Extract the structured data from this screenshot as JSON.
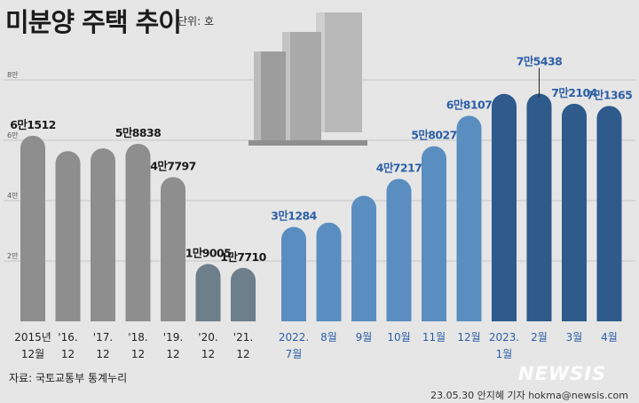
{
  "title": "미분양 주택 추이",
  "unit_label": "단위: 호",
  "source": "자료: 국토교통부 통계누리",
  "credit": "23.05.30 안지혜 기자 hokma@newsis.com",
  "logo": "NEWSIS",
  "colors": {
    "gray": "#8e8e8e",
    "dark_gray": "#6e7f8c",
    "light_blue": "#5a8ec0",
    "dark_blue": "#2e5a8c",
    "label_black": "#1a1a1a",
    "label_blue": "#2d5fa6",
    "background": "#e6e6e6"
  },
  "chart_data": {
    "type": "bar",
    "ylim": [
      0,
      80000
    ],
    "yticks": [
      20000,
      40000,
      60000,
      80000
    ],
    "ytick_labels": [
      "2만",
      "4만",
      "6만",
      "8만"
    ],
    "grid": true,
    "categories": [
      [
        "2015년",
        "12월"
      ],
      [
        "'16.",
        "12"
      ],
      [
        "'17.",
        "12"
      ],
      [
        "'18.",
        "12"
      ],
      [
        "'19.",
        "12"
      ],
      [
        "'20.",
        "12"
      ],
      [
        "'21.",
        "12"
      ],
      [
        "2022.",
        "7월"
      ],
      [
        "8월"
      ],
      [
        "9월"
      ],
      [
        "10월"
      ],
      [
        "11월"
      ],
      [
        "12월"
      ],
      [
        "2023.",
        "1월"
      ],
      [
        "2월"
      ],
      [
        "3월"
      ],
      [
        "4월"
      ]
    ],
    "values": [
      61512,
      56413,
      57330,
      58838,
      47797,
      19005,
      17710,
      31284,
      32722,
      41604,
      47217,
      58027,
      68107,
      75359,
      75438,
      72104,
      71365
    ],
    "data_labels": [
      "6만1512",
      "",
      "",
      "5만8838",
      "4만7797",
      "1만9005",
      "1만7710",
      "3만1284",
      "",
      "",
      "4만7217",
      "5만8027",
      "6만8107",
      "",
      "7만5438",
      "7만2104",
      "7만1365"
    ],
    "bar_colors": [
      "gray",
      "gray",
      "gray",
      "gray",
      "gray",
      "dark_gray",
      "dark_gray",
      "light_blue",
      "light_blue",
      "light_blue",
      "light_blue",
      "light_blue",
      "light_blue",
      "dark_blue",
      "dark_blue",
      "dark_blue",
      "dark_blue"
    ]
  }
}
